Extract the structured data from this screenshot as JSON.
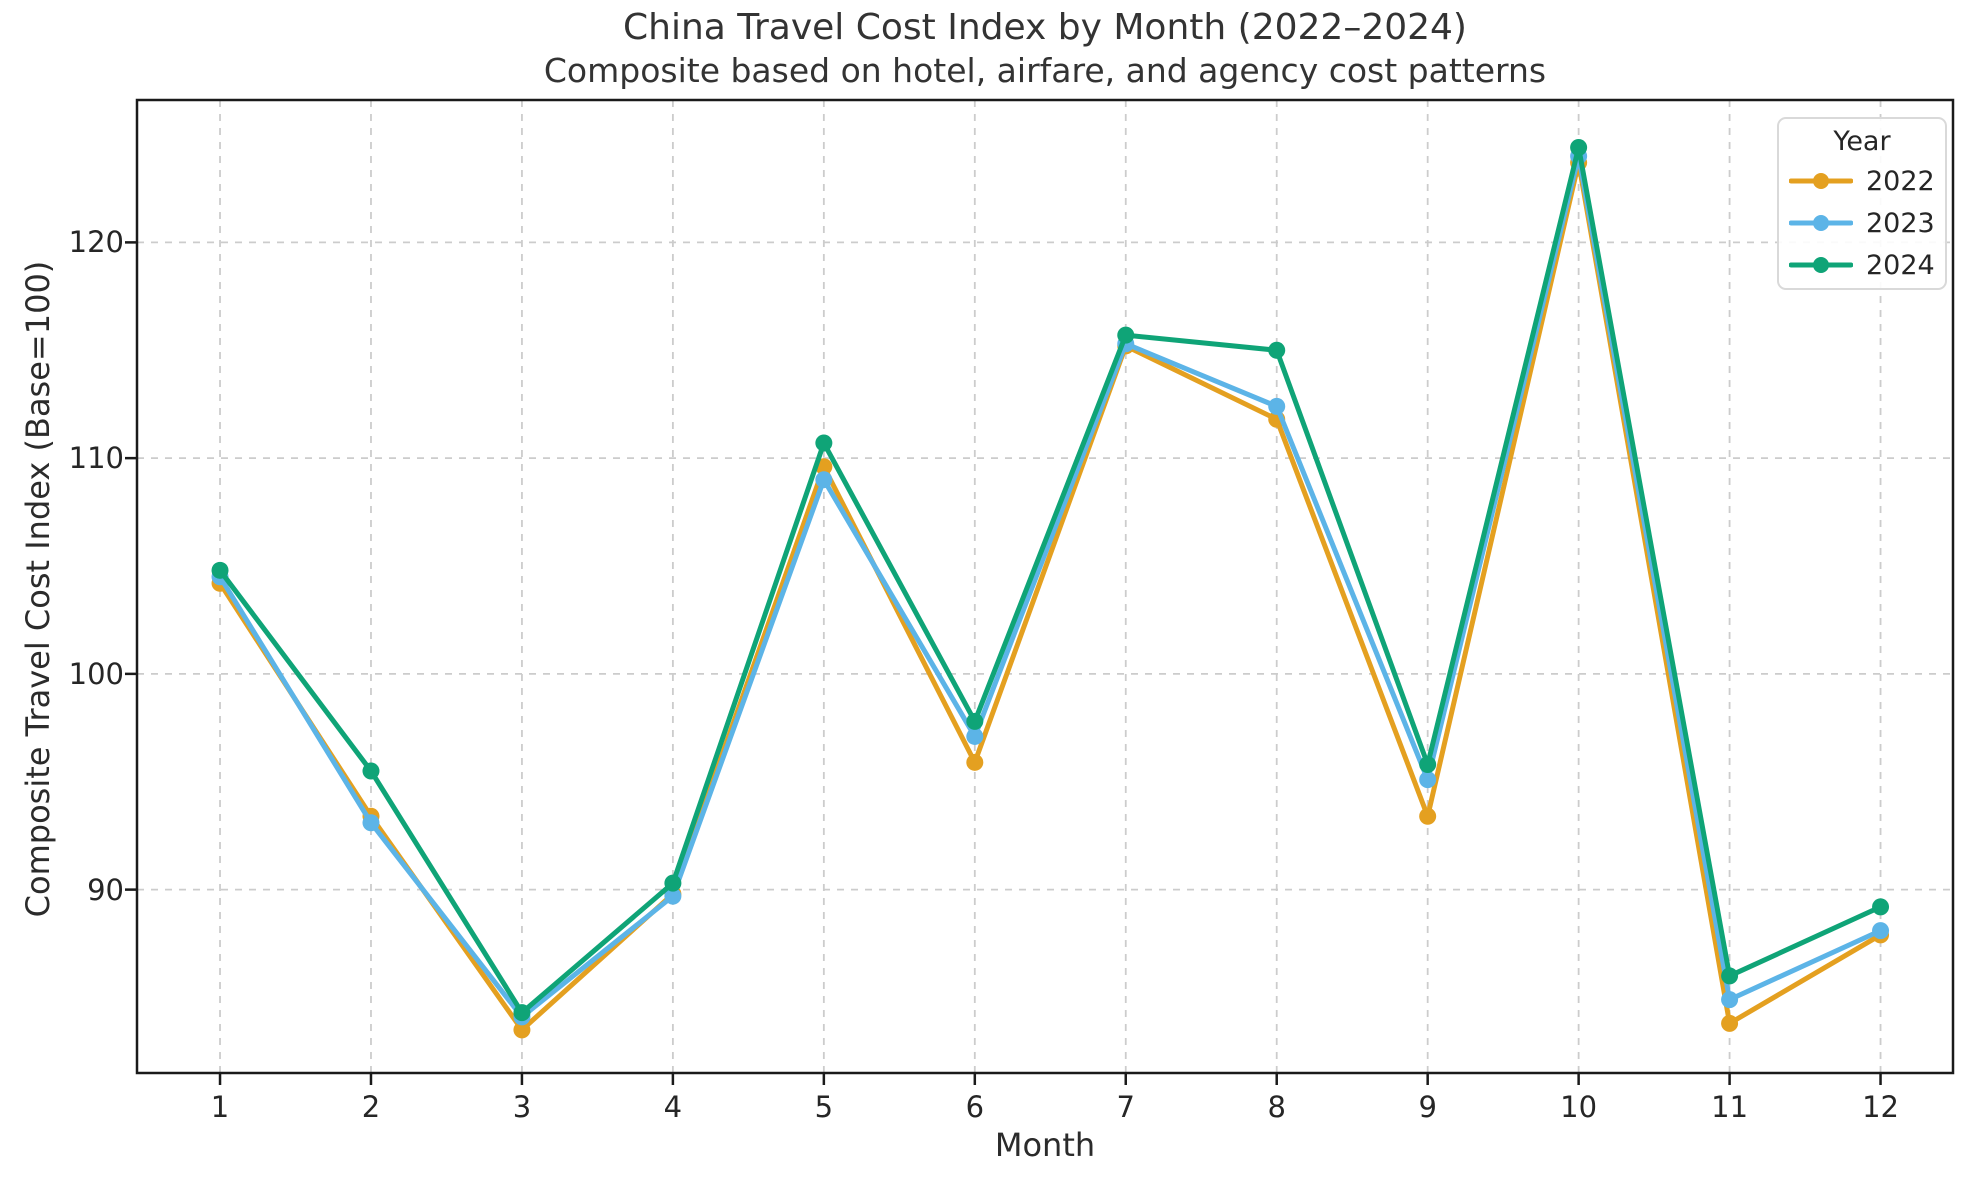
{
  "chart_data": {
    "type": "line",
    "title": "China Travel Cost Index by Month (2022–2024)",
    "subtitle": "Composite based on hotel, airfare, and agency cost patterns",
    "xlabel": "Month",
    "ylabel": "Composite Travel Cost Index (Base=100)",
    "x": [
      1,
      2,
      3,
      4,
      5,
      6,
      7,
      8,
      9,
      10,
      11,
      12
    ],
    "series": [
      {
        "name": "2022",
        "color": "#E4A020",
        "values": [
          104.2,
          93.4,
          83.5,
          89.8,
          109.6,
          95.9,
          115.2,
          111.8,
          93.4,
          123.7,
          83.8,
          87.9
        ]
      },
      {
        "name": "2023",
        "color": "#5CB4E7",
        "values": [
          104.5,
          93.1,
          84.1,
          89.7,
          109.0,
          97.1,
          115.3,
          112.4,
          95.1,
          124.0,
          84.9,
          88.1
        ]
      },
      {
        "name": "2024",
        "color": "#0FA477",
        "values": [
          104.8,
          95.5,
          84.3,
          90.3,
          110.7,
          97.8,
          115.7,
          115.0,
          95.8,
          124.4,
          86.0,
          89.2
        ]
      }
    ],
    "yticks": [
      90,
      100,
      110,
      120
    ],
    "ylim": [
      81.5,
      126.6
    ],
    "xlim": [
      0.45,
      12.48
    ],
    "grid": true,
    "grid_style": "dashed",
    "legend": {
      "title": "Year",
      "position": "upper right"
    }
  },
  "colors": {
    "grid": "#cccccc",
    "spine": "#1a1a1a",
    "text": "#262626",
    "background": "#ffffff"
  }
}
